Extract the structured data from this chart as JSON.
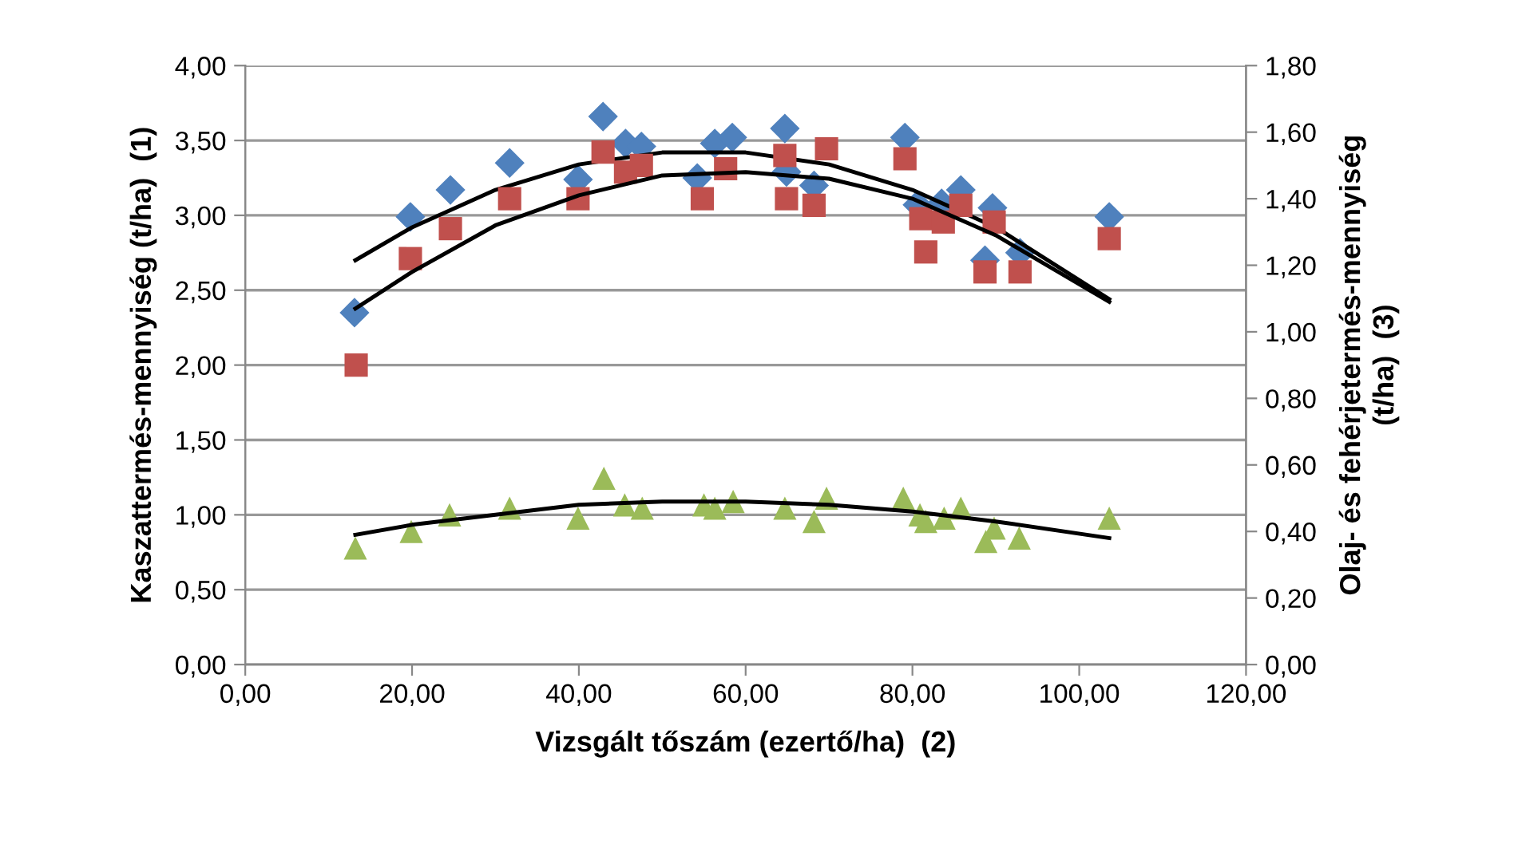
{
  "chart_data": {
    "type": "scatter",
    "xlabel": "Vizsgált tőszám (ezertő/ha)  (2)",
    "ylabel": "Kaszattermés-mennyiség (t/ha)  (1)",
    "y2label": "Olaj- és fehérjetermés-mennyiség\n(t/ha)  (3)",
    "xlim": [
      0,
      120
    ],
    "xticks": [
      {
        "value": 0,
        "label": "0,00"
      },
      {
        "value": 20,
        "label": "20,00"
      },
      {
        "value": 40,
        "label": "40,00"
      },
      {
        "value": 60,
        "label": "60,00"
      },
      {
        "value": 80,
        "label": "80,00"
      },
      {
        "value": 100,
        "label": "100,00"
      },
      {
        "value": 120,
        "label": "120,00"
      }
    ],
    "ylim": [
      0,
      4
    ],
    "yticks": [
      {
        "value": 0,
        "label": "0,00"
      },
      {
        "value": 0.5,
        "label": "0,50"
      },
      {
        "value": 1,
        "label": "1,00"
      },
      {
        "value": 1.5,
        "label": "1,50"
      },
      {
        "value": 2,
        "label": "2,00"
      },
      {
        "value": 2.5,
        "label": "2,50"
      },
      {
        "value": 3,
        "label": "3,00"
      },
      {
        "value": 3.5,
        "label": "3,50"
      },
      {
        "value": 4,
        "label": "4,00"
      }
    ],
    "y2lim": [
      0,
      1.8
    ],
    "y2ticks": [
      {
        "value": 0,
        "label": "0,00"
      },
      {
        "value": 0.2,
        "label": "0,20"
      },
      {
        "value": 0.4,
        "label": "0,40"
      },
      {
        "value": 0.6,
        "label": "0,60"
      },
      {
        "value": 0.8,
        "label": "0,80"
      },
      {
        "value": 1.0,
        "label": "1,00"
      },
      {
        "value": 1.2,
        "label": "1,20"
      },
      {
        "value": 1.4,
        "label": "1,40"
      },
      {
        "value": 1.6,
        "label": "1,60"
      },
      {
        "value": 1.8,
        "label": "1,80"
      }
    ],
    "grid": "y",
    "legend": false,
    "series": [
      {
        "marker": "diamond",
        "color": "#4f81bd",
        "x": [
          13.1,
          19.8,
          24.6,
          31.7,
          39.9,
          42.9,
          45.6,
          47.5,
          54.2,
          56.3,
          58.4,
          64.7,
          64.9,
          68.2,
          79.1,
          80.6,
          83.5,
          85.8,
          89.6,
          88.7,
          92.9,
          103.6
        ],
        "values": [
          2.35,
          2.99,
          3.17,
          3.35,
          3.24,
          3.66,
          3.48,
          3.46,
          3.25,
          3.48,
          3.52,
          3.58,
          3.29,
          3.2,
          3.52,
          3.07,
          3.08,
          3.17,
          3.05,
          2.7,
          2.75,
          2.99
        ]
      },
      {
        "marker": "square",
        "color": "#c0504d",
        "axis": "y2",
        "x": [
          13.3,
          19.8,
          24.6,
          31.7,
          39.9,
          42.9,
          45.6,
          47.5,
          54.8,
          57.6,
          64.7,
          64.9,
          68.2,
          69.7,
          79.1,
          81.0,
          81.6,
          83.7,
          85.8,
          89.8,
          88.7,
          92.9,
          103.6
        ],
        "values": [
          0.9,
          1.22,
          1.31,
          1.4,
          1.4,
          1.54,
          1.48,
          1.5,
          1.4,
          1.49,
          1.53,
          1.4,
          1.38,
          1.55,
          1.52,
          1.34,
          1.24,
          1.33,
          1.38,
          1.33,
          1.18,
          1.18,
          1.28
        ]
      },
      {
        "marker": "triangle",
        "color": "#9bbb59",
        "axis": "y2",
        "x": [
          13.2,
          19.9,
          24.5,
          31.7,
          39.9,
          43.0,
          45.5,
          47.6,
          55.0,
          56.3,
          58.5,
          64.7,
          68.2,
          69.7,
          78.9,
          80.9,
          81.6,
          83.8,
          85.8,
          89.8,
          88.8,
          92.8,
          103.6
        ],
        "values": [
          0.35,
          0.4,
          0.45,
          0.47,
          0.44,
          0.56,
          0.48,
          0.47,
          0.48,
          0.47,
          0.49,
          0.47,
          0.43,
          0.5,
          0.5,
          0.45,
          0.43,
          0.44,
          0.47,
          0.41,
          0.37,
          0.38,
          0.44
        ]
      },
      {
        "type": "line",
        "marker": "none",
        "color": "#000000",
        "x": [
          13.2,
          20,
          30,
          40,
          50,
          60,
          70,
          80,
          90,
          103.6
        ],
        "values": [
          2.7,
          2.92,
          3.17,
          3.34,
          3.42,
          3.42,
          3.34,
          3.17,
          2.92,
          2.44
        ]
      },
      {
        "type": "line",
        "marker": "none",
        "color": "#000000",
        "axis": "y2",
        "x": [
          13.2,
          20,
          30,
          40,
          50,
          60,
          70,
          80,
          90,
          103.6
        ],
        "values": [
          1.07,
          1.18,
          1.32,
          1.41,
          1.47,
          1.48,
          1.46,
          1.4,
          1.29,
          1.09
        ]
      },
      {
        "type": "line",
        "marker": "none",
        "color": "#000000",
        "axis": "y2",
        "x": [
          13.2,
          20,
          30,
          40,
          50,
          60,
          70,
          80,
          90,
          103.6
        ],
        "values": [
          0.39,
          0.42,
          0.45,
          0.48,
          0.49,
          0.49,
          0.48,
          0.46,
          0.43,
          0.38
        ]
      }
    ]
  }
}
